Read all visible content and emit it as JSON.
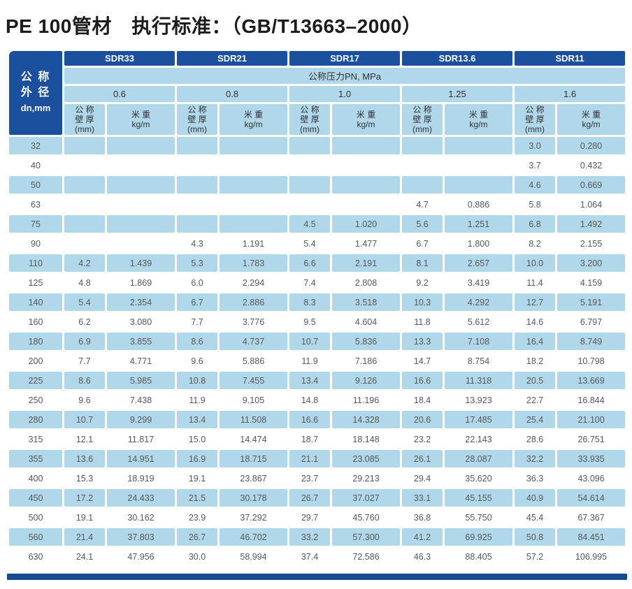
{
  "title": "PE 100管材　执行标准：（GB/T13663–2000）",
  "colors": {
    "dark_blue": "#1b509e",
    "light_blue": "#b0d8ea",
    "bottom_bar": "#174a90",
    "data_text": "#57585a"
  },
  "table": {
    "corner_header": {
      "lines": [
        "公 称",
        "外 径",
        "dn,mm"
      ]
    },
    "sdr_headers": [
      "SDR33",
      "SDR21",
      "SDR17",
      "SDR13.6",
      "SDR11"
    ],
    "pressure_header": "公称压力PN, MPa",
    "pressures": [
      "0.6",
      "0.8",
      "1.0",
      "1.25",
      "1.6"
    ],
    "wall_header": {
      "lines": [
        "公 称",
        "壁 厚",
        "(mm)"
      ]
    },
    "weight_header": {
      "lines": [
        "米 重",
        "kg/m"
      ]
    },
    "rows": [
      {
        "dn": "32",
        "cells": [
          "",
          "",
          "",
          "",
          "",
          "",
          "",
          "",
          "3.0",
          "0.280"
        ]
      },
      {
        "dn": "40",
        "cells": [
          "",
          "",
          "",
          "",
          "",
          "",
          "",
          "",
          "3.7",
          "0.432"
        ]
      },
      {
        "dn": "50",
        "cells": [
          "",
          "",
          "",
          "",
          "",
          "",
          "",
          "",
          "4.6",
          "0.669"
        ]
      },
      {
        "dn": "63",
        "cells": [
          "",
          "",
          "",
          "",
          "",
          "",
          "4.7",
          "0.886",
          "5.8",
          "1.064"
        ]
      },
      {
        "dn": "75",
        "cells": [
          "",
          "",
          "",
          "",
          "4.5",
          "1.020",
          "5.6",
          "1.251",
          "6.8",
          "1.492"
        ]
      },
      {
        "dn": "90",
        "cells": [
          "",
          "",
          "4.3",
          "1.191",
          "5.4",
          "1.477",
          "6.7",
          "1.800",
          "8.2",
          "2.155"
        ]
      },
      {
        "dn": "110",
        "cells": [
          "4.2",
          "1.439",
          "5.3",
          "1.783",
          "6.6",
          "2.191",
          "8.1",
          "2.657",
          "10.0",
          "3.200"
        ]
      },
      {
        "dn": "125",
        "cells": [
          "4.8",
          "1.869",
          "6.0",
          "2.294",
          "7.4",
          "2.808",
          "9.2",
          "3.419",
          "11.4",
          "4.159"
        ]
      },
      {
        "dn": "140",
        "cells": [
          "5.4",
          "2.354",
          "6.7",
          "2.886",
          "8.3",
          "3.518",
          "10.3",
          "4.292",
          "12.7",
          "5.191"
        ]
      },
      {
        "dn": "160",
        "cells": [
          "6.2",
          "3.080",
          "7.7",
          "3.776",
          "9.5",
          "4.604",
          "11.8",
          "5.612",
          "14.6",
          "6.797"
        ]
      },
      {
        "dn": "180",
        "cells": [
          "6.9",
          "3.855",
          "8.6",
          "4.737",
          "10.7",
          "5.836",
          "13.3",
          "7.108",
          "16.4",
          "8.749"
        ]
      },
      {
        "dn": "200",
        "cells": [
          "7.7",
          "4.771",
          "9.6",
          "5.886",
          "11.9",
          "7.186",
          "14.7",
          "8.754",
          "18.2",
          "10.798"
        ]
      },
      {
        "dn": "225",
        "cells": [
          "8.6",
          "5.985",
          "10.8",
          "7.455",
          "13.4",
          "9.126",
          "16.6",
          "11.318",
          "20.5",
          "13.669"
        ]
      },
      {
        "dn": "250",
        "cells": [
          "9.6",
          "7.438",
          "11.9",
          "9.105",
          "14.8",
          "11.196",
          "18.4",
          "13.923",
          "22.7",
          "16.844"
        ]
      },
      {
        "dn": "280",
        "cells": [
          "10.7",
          "9.299",
          "13.4",
          "11.508",
          "16.6",
          "14.328",
          "20.6",
          "17.485",
          "25.4",
          "21.100"
        ]
      },
      {
        "dn": "315",
        "cells": [
          "12.1",
          "11.817",
          "15.0",
          "14.474",
          "18.7",
          "18.148",
          "23.2",
          "22.143",
          "28.6",
          "26.751"
        ]
      },
      {
        "dn": "355",
        "cells": [
          "13.6",
          "14.951",
          "16.9",
          "18.715",
          "21.1",
          "23.085",
          "26.1",
          "28.087",
          "32.2",
          "33.935"
        ]
      },
      {
        "dn": "400",
        "cells": [
          "15.3",
          "18.919",
          "19.1",
          "23.867",
          "23.7",
          "29.213",
          "29.4",
          "35.620",
          "36.3",
          "43.096"
        ]
      },
      {
        "dn": "450",
        "cells": [
          "17.2",
          "24.433",
          "21.5",
          "30.178",
          "26.7",
          "37.027",
          "33.1",
          "45.155",
          "40.9",
          "54.614"
        ]
      },
      {
        "dn": "500",
        "cells": [
          "19.1",
          "30.162",
          "23.9",
          "37.292",
          "29.7",
          "45.760",
          "36.8",
          "55.750",
          "45.4",
          "67.367"
        ]
      },
      {
        "dn": "560",
        "cells": [
          "21.4",
          "37.803",
          "26.7",
          "46.702",
          "33.2",
          "57.300",
          "41.2",
          "69.925",
          "50.8",
          "84.451"
        ]
      },
      {
        "dn": "630",
        "cells": [
          "24.1",
          "47.956",
          "30.0",
          "58.994",
          "37.4",
          "72.586",
          "46.3",
          "88.405",
          "57.2",
          "106.995"
        ]
      }
    ]
  }
}
